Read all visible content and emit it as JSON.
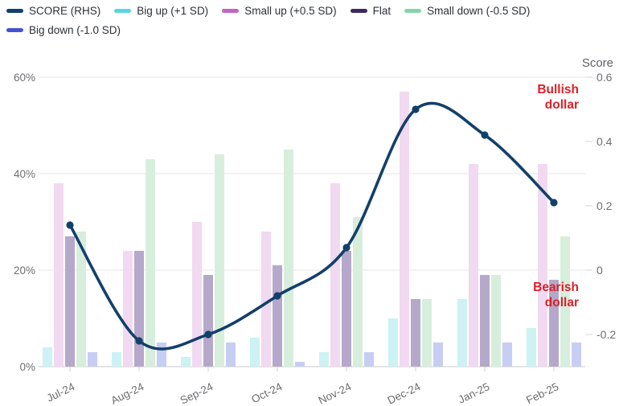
{
  "legend": {
    "items": [
      {
        "label": "SCORE (RHS)",
        "color": "#133f6b"
      },
      {
        "label": "Big up (+1 SD)",
        "color": "#56d8dd"
      },
      {
        "label": "Small up (+0.5 SD)",
        "color": "#c263c6"
      },
      {
        "label": "Flat",
        "color": "#3d2a64"
      },
      {
        "label": "Small down (-0.5 SD)",
        "color": "#84d5a8"
      },
      {
        "label": "Big down (-1.0 SD)",
        "color": "#4253d0"
      }
    ]
  },
  "annotations": {
    "bullish": "Bullish dollar",
    "bearish": "Bearish dollar",
    "color": "#de1f26"
  },
  "chart_data": {
    "type": "bar+line combo",
    "categories": [
      "Jul-24",
      "Aug-24",
      "Sep-24",
      "Oct-24",
      "Nov-24",
      "Dec-24",
      "Jan-25",
      "Feb-25"
    ],
    "series": [
      {
        "name": "Big up (+1 SD)",
        "type": "bar",
        "axis": "left",
        "bar_color": "#ccf2f4",
        "values": [
          4,
          3,
          2,
          6,
          3,
          10,
          14,
          8
        ]
      },
      {
        "name": "Small up (+0.5 SD)",
        "type": "bar",
        "axis": "left",
        "bar_color": "#f1d9f1",
        "values": [
          38,
          24,
          30,
          28,
          38,
          57,
          42,
          42
        ]
      },
      {
        "name": "Flat",
        "type": "bar",
        "axis": "left",
        "bar_color": "#b5a8ca",
        "values": [
          27,
          24,
          19,
          21,
          24,
          14,
          19,
          18
        ]
      },
      {
        "name": "Small down (-0.5 SD)",
        "type": "bar",
        "axis": "left",
        "bar_color": "#d8eedd",
        "values": [
          28,
          43,
          44,
          45,
          31,
          14,
          19,
          27
        ]
      },
      {
        "name": "Big down (-1.0 SD)",
        "type": "bar",
        "axis": "left",
        "bar_color": "#c7cef4",
        "values": [
          3,
          5,
          5,
          1,
          3,
          5,
          5,
          5
        ]
      }
    ],
    "line_series": {
      "name": "SCORE (RHS)",
      "type": "line",
      "axis": "right",
      "color": "#133f6b",
      "values": [
        0.14,
        -0.22,
        -0.2,
        -0.08,
        0.07,
        0.5,
        0.42,
        0.21
      ]
    },
    "left_axis": {
      "unit": "%",
      "ticks": [
        0,
        20,
        40,
        60
      ],
      "range": [
        0,
        60
      ],
      "grid": true
    },
    "right_axis": {
      "title": "Score",
      "ticks": [
        -0.2,
        0,
        0.2,
        0.4,
        0.6
      ],
      "range": [
        -0.3,
        0.6
      ],
      "grid": false
    },
    "legend_position": "top",
    "annotations": [
      "Bullish dollar",
      "Bearish dollar"
    ]
  }
}
